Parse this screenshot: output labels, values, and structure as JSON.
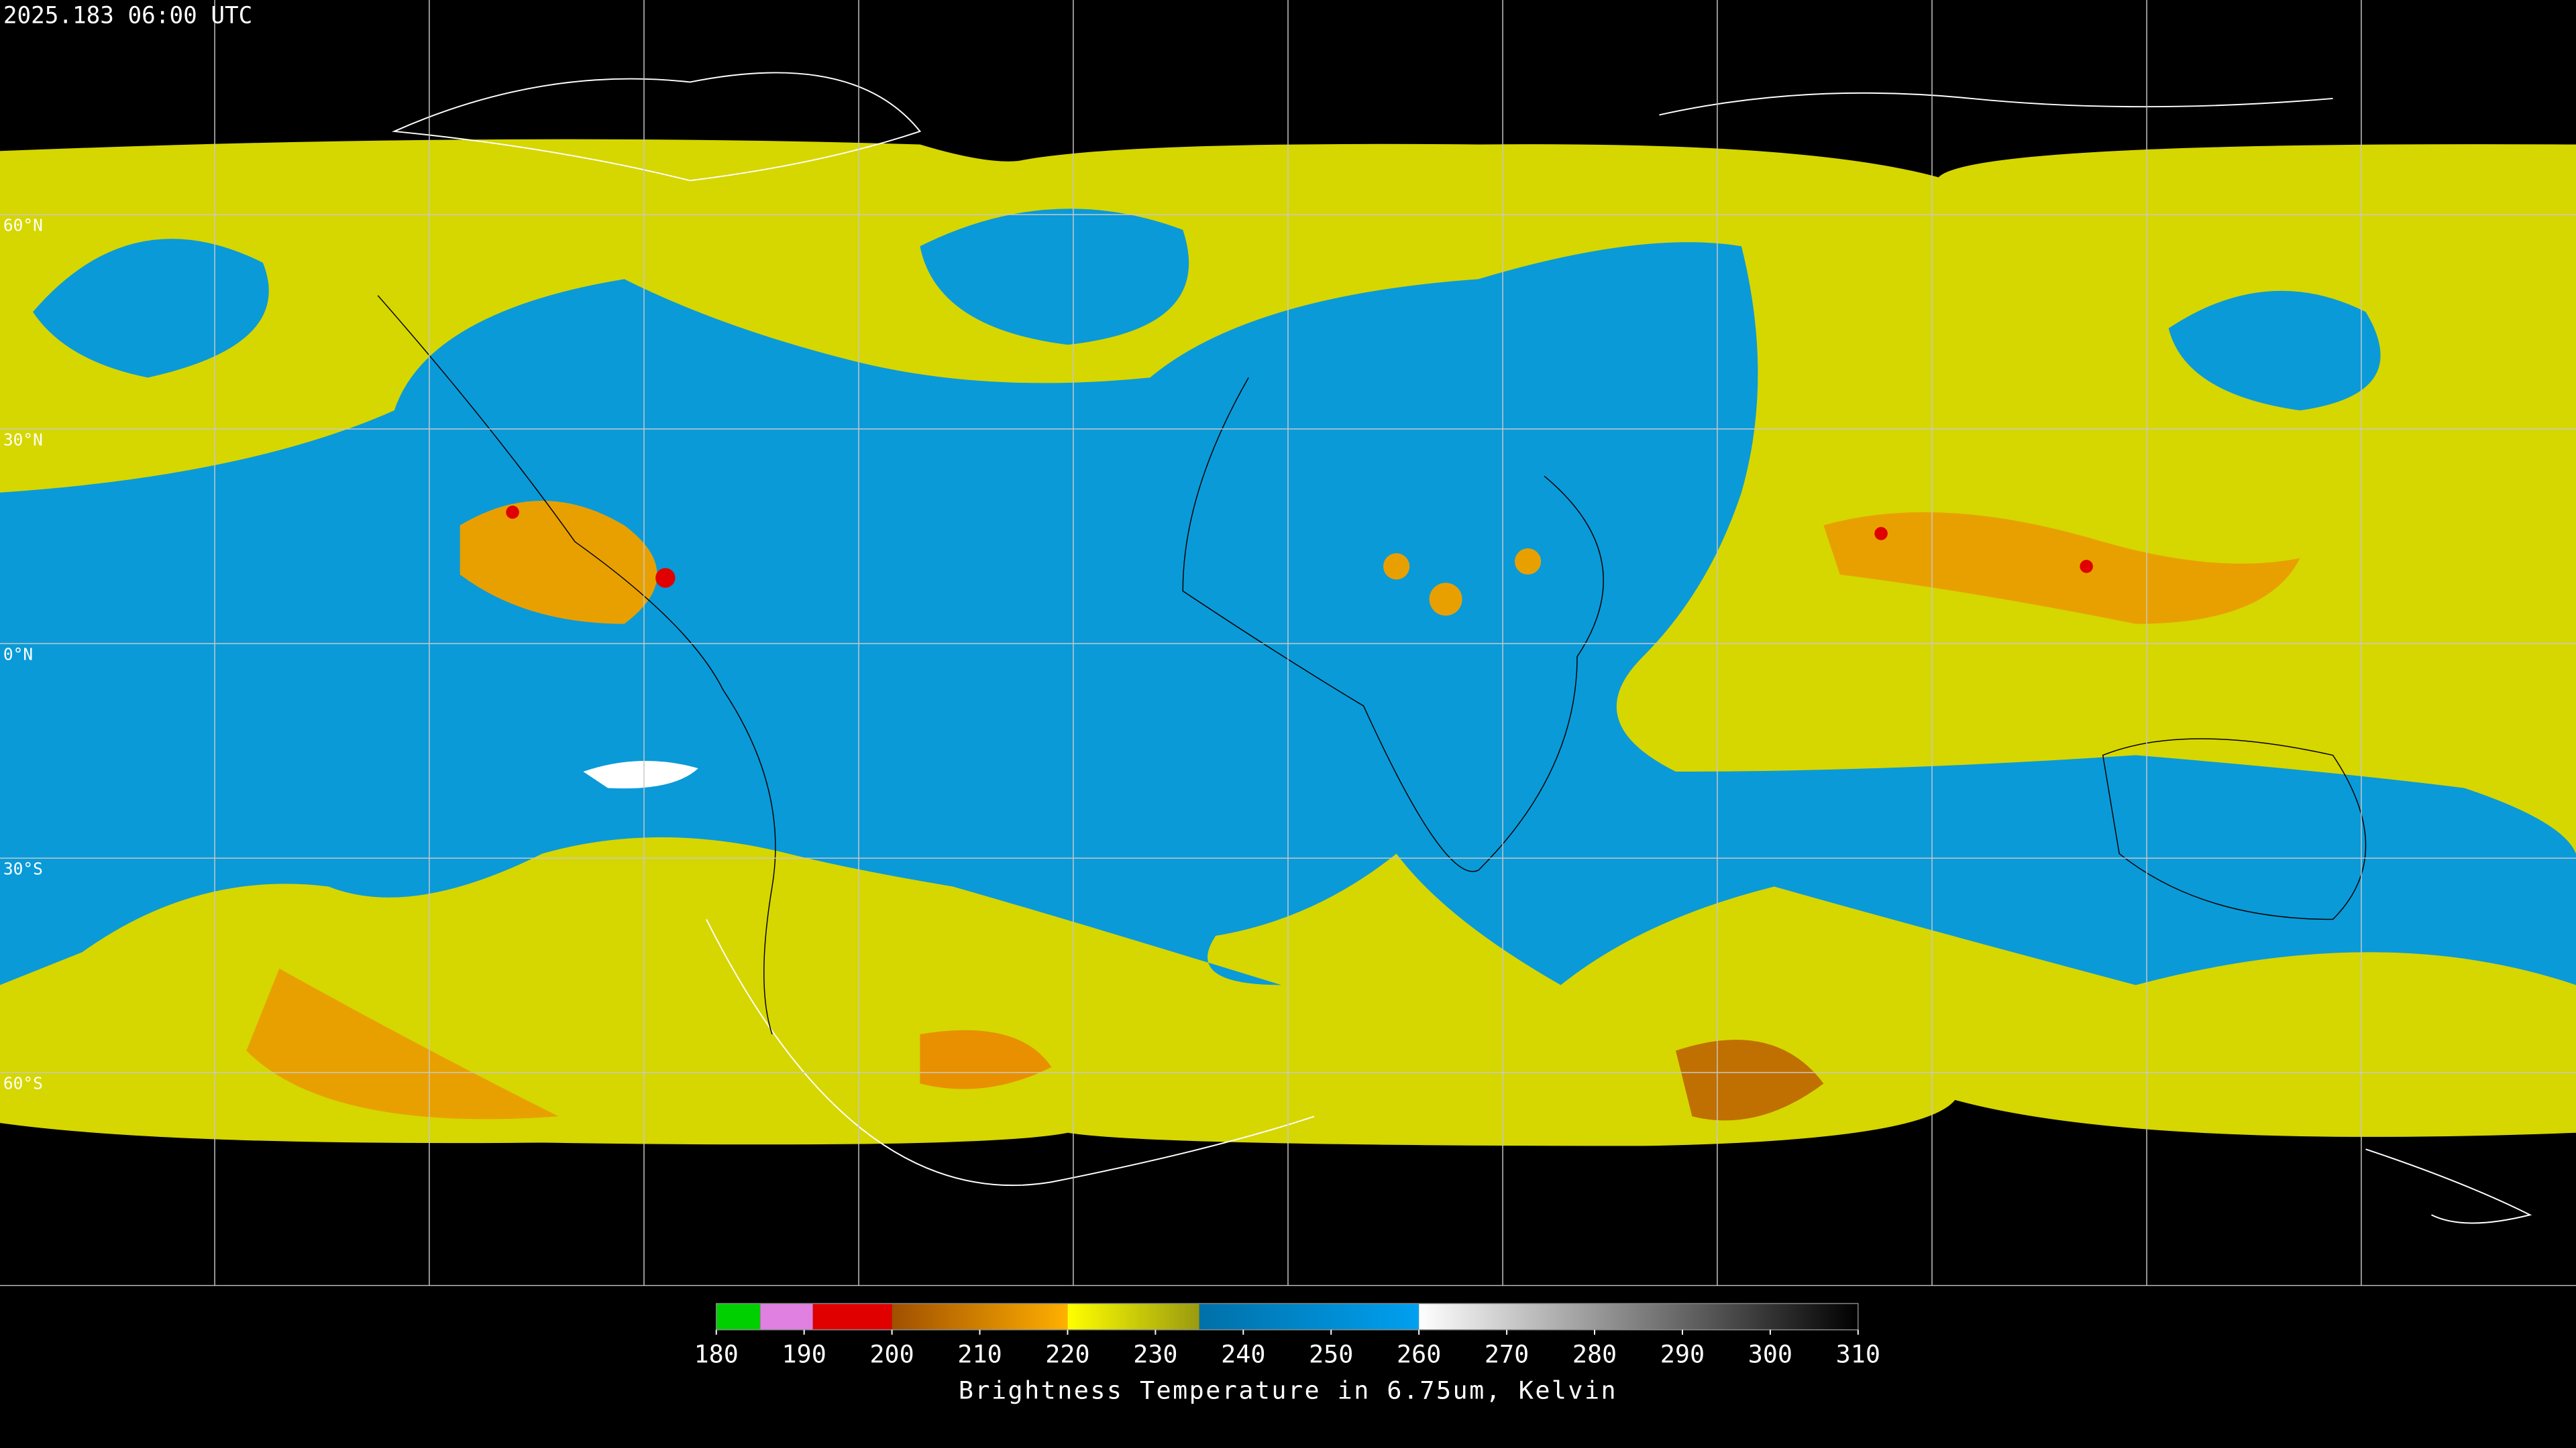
{
  "header": {
    "timestamp": "2025.183 06:00 UTC"
  },
  "map": {
    "lat_labels": [
      "60°N",
      "30°N",
      "0°N",
      "30°S",
      "60°S"
    ]
  },
  "colorbar": {
    "range": [
      180,
      310
    ],
    "ticks": [
      180,
      190,
      200,
      210,
      220,
      230,
      240,
      250,
      260,
      270,
      280,
      290,
      300,
      310
    ],
    "segments": [
      {
        "from": 180,
        "to": 185,
        "colors": [
          "#00d000",
          "#00d000"
        ]
      },
      {
        "from": 185,
        "to": 191,
        "colors": [
          "#e080e0",
          "#e080e0"
        ]
      },
      {
        "from": 191,
        "to": 200,
        "colors": [
          "#e00000",
          "#e00000"
        ]
      },
      {
        "from": 200,
        "to": 220,
        "colors": [
          "#a05000",
          "#ffb000"
        ]
      },
      {
        "from": 220,
        "to": 235,
        "colors": [
          "#ffff00",
          "#9a9a10"
        ]
      },
      {
        "from": 235,
        "to": 260,
        "colors": [
          "#0070a8",
          "#00a0f0"
        ]
      },
      {
        "from": 260,
        "to": 310,
        "colors": [
          "#ffffff",
          "#000000"
        ]
      }
    ],
    "label": "Brightness Temperature in 6.75um, Kelvin"
  }
}
